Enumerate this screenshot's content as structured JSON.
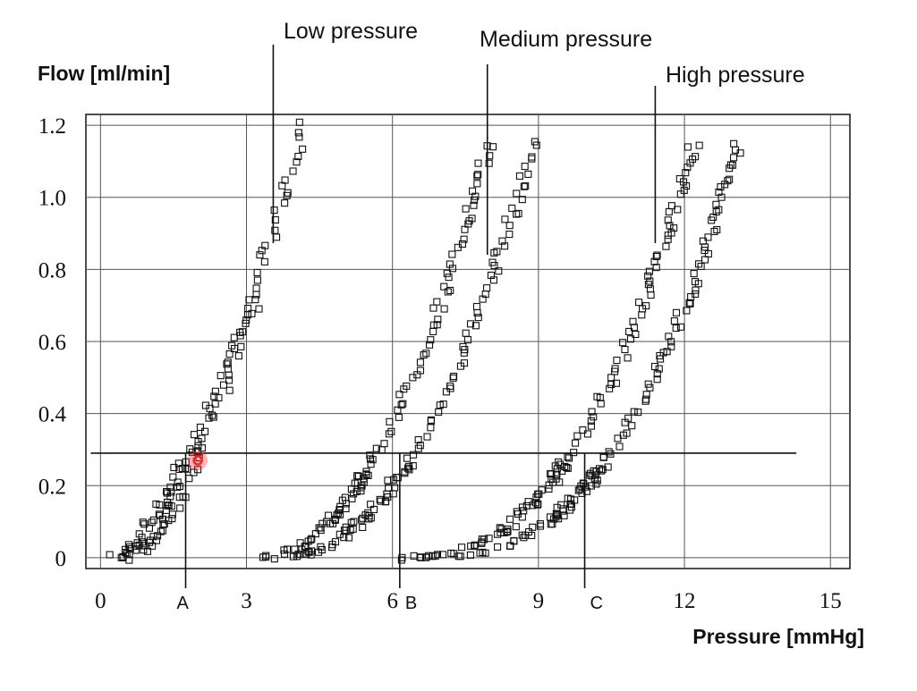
{
  "chart_data": {
    "type": "scatter",
    "xlabel": "Pressure [mmHg]",
    "ylabel": "Flow [ml/min]",
    "xlim": [
      -0.3,
      15.4
    ],
    "ylim": [
      -0.03,
      1.23
    ],
    "x_ticks": [
      0,
      3,
      6,
      9,
      12,
      15
    ],
    "y_ticks": [
      0,
      0.2,
      0.4,
      0.6,
      0.8,
      1.0,
      1.2
    ],
    "x_tick_labels": [
      "0",
      "3",
      "6",
      "9",
      "12",
      "15"
    ],
    "y_tick_labels": [
      "0",
      "0.2",
      "0.4",
      "0.6",
      "0.8",
      "1.0",
      "1.2"
    ],
    "x_gridlines": [
      0,
      3,
      6,
      9,
      12,
      15
    ],
    "grid": true,
    "series": [
      {
        "name": "Low pressure",
        "curves": [
          {
            "x0": 0.3,
            "x1": 4.2,
            "p": 1.5,
            "ymax": 1.2,
            "n": 60
          },
          {
            "x0": 0.6,
            "x1": 3.2,
            "p": 1.5,
            "ymax": 0.72,
            "n": 35
          }
        ],
        "annotation_x": 3.55
      },
      {
        "name": "Medium pressure",
        "curves": [
          {
            "x0": 3.3,
            "x1": 8.0,
            "p": 2.0,
            "ymax": 1.15,
            "n": 75
          },
          {
            "x0": 3.6,
            "x1": 8.9,
            "p": 2.2,
            "ymax": 1.15,
            "n": 75
          }
        ],
        "annotation_x": 7.95
      },
      {
        "name": "High pressure",
        "curves": [
          {
            "x0": 6.1,
            "x1": 12.2,
            "p": 2.6,
            "ymax": 1.15,
            "n": 85
          },
          {
            "x0": 6.4,
            "x1": 13.1,
            "p": 2.8,
            "ymax": 1.15,
            "n": 90
          }
        ],
        "annotation_x": 11.4
      }
    ],
    "threshold": {
      "y": 0.29,
      "x_start": -0.2,
      "x_end": 14.3
    },
    "markers": [
      {
        "label": "A",
        "x": 1.75
      },
      {
        "label": "B",
        "x": 6.15
      },
      {
        "label": "C",
        "x": 9.95
      }
    ],
    "highlight_point": {
      "x": 2.0,
      "y": 0.27
    }
  }
}
